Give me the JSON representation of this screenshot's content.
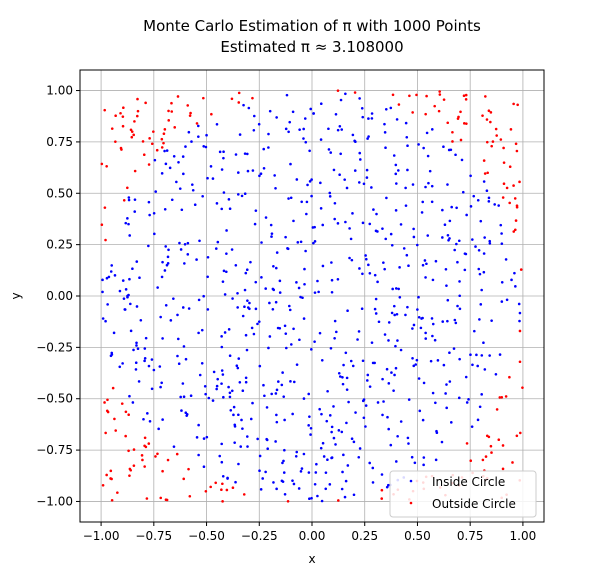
{
  "chart_data": {
    "type": "scatter",
    "title": [
      "Monte Carlo Estimation of π with 1000 Points",
      "Estimated π ≈ 3.108000"
    ],
    "xlabel": "x",
    "ylabel": "y",
    "xlim": [
      -1.1,
      1.1
    ],
    "ylim": [
      -1.1,
      1.1
    ],
    "xticks": [
      "−1.00",
      "−0.75",
      "−0.50",
      "−0.25",
      "0.00",
      "0.25",
      "0.50",
      "0.75",
      "1.00"
    ],
    "yticks": [
      "−1.00",
      "−0.75",
      "−0.50",
      "−0.25",
      "0.00",
      "0.25",
      "0.50",
      "0.75",
      "1.00"
    ],
    "tick_values": [
      -1.0,
      -0.75,
      -0.5,
      -0.25,
      0.0,
      0.25,
      0.5,
      0.75,
      1.0
    ],
    "grid": true,
    "legend_position": "lower-right",
    "total_points": 1000,
    "series": [
      {
        "name": "Inside Circle",
        "color": "#0000ff",
        "count": 777
      },
      {
        "name": "Outside Circle",
        "color": "#ff0000",
        "count": 223
      }
    ]
  }
}
